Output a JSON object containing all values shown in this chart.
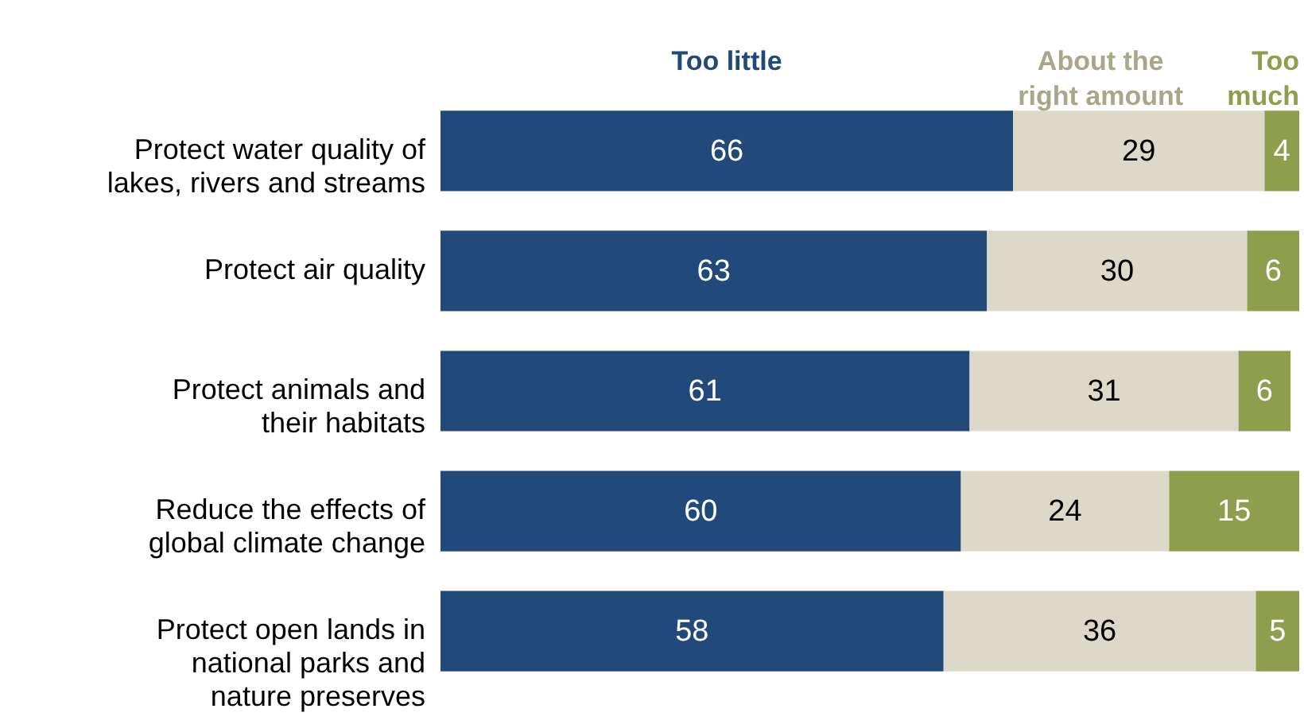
{
  "chart_data": {
    "type": "bar",
    "orientation": "horizontal",
    "stacked": true,
    "data_labels": true,
    "legend": "top",
    "categories": [
      "Protect water quality of\nlakes, rivers and streams",
      "Protect air quality",
      "Protect animals and\ntheir habitats",
      "Reduce the effects of\nglobal climate change",
      "Protect open lands in\nnational parks and\nnature preserves"
    ],
    "series": [
      {
        "name": "Too little",
        "color": "#214a7b",
        "values": [
          66,
          63,
          61,
          60,
          58
        ]
      },
      {
        "name": "About the\nright amount",
        "color": "#dcd9c8",
        "values": [
          29,
          30,
          31,
          24,
          36
        ]
      },
      {
        "name": "Too\nmuch",
        "color": "#8e9e4c",
        "values": [
          4,
          6,
          6,
          15,
          5
        ]
      }
    ]
  }
}
